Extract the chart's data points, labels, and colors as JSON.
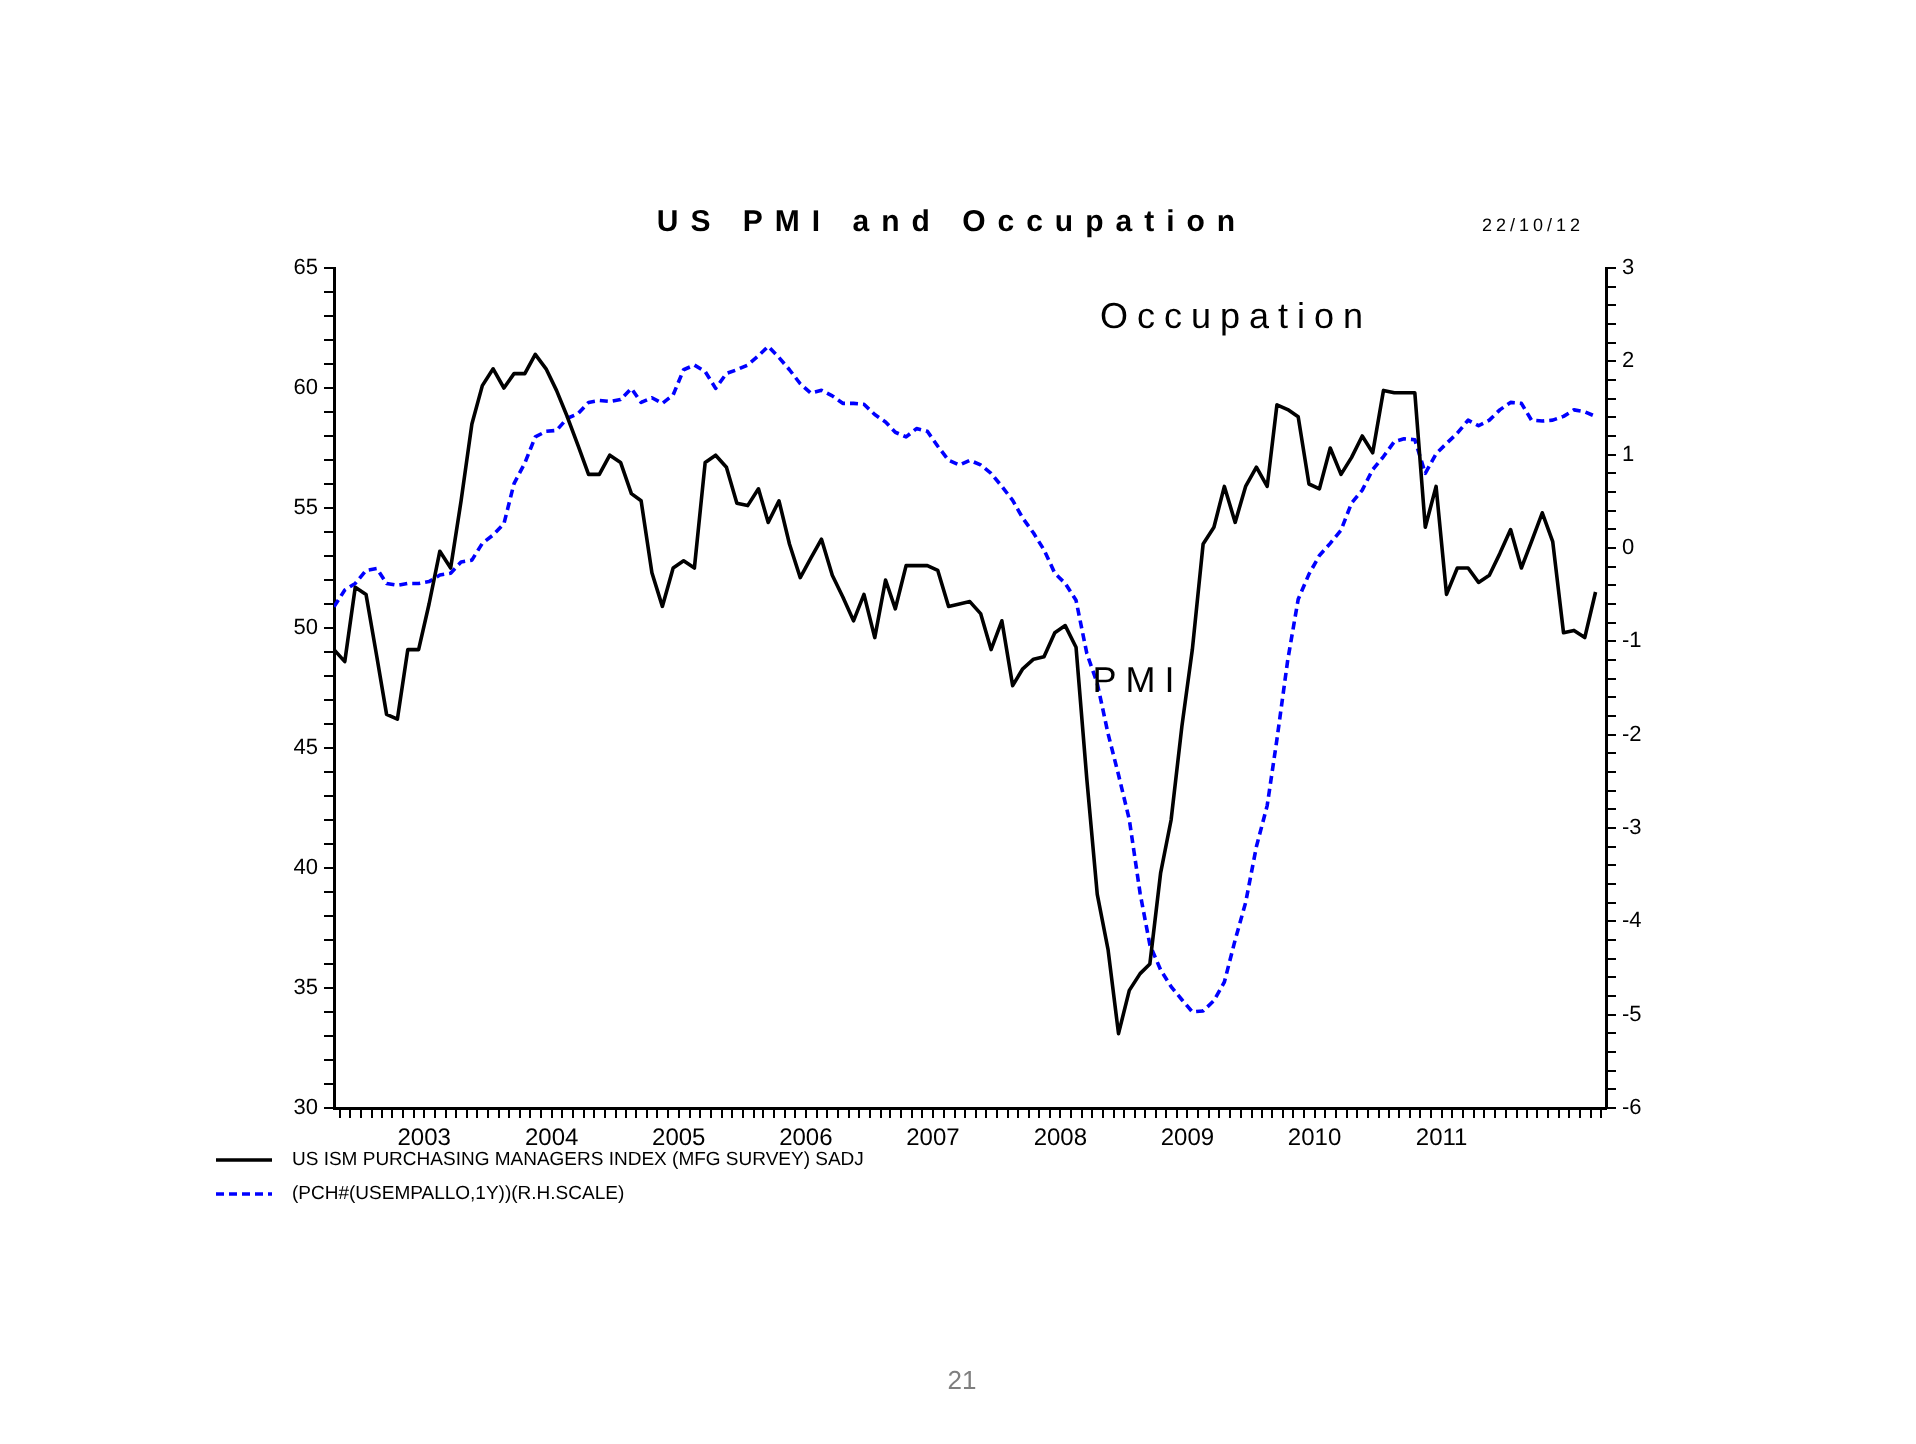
{
  "chart_data": {
    "type": "line",
    "title": "US PMI and Occupation",
    "annotations": [
      "Occupation",
      "PMI",
      "22/10/12",
      "21"
    ],
    "x": [
      "2002-10-15",
      "2002-11-15",
      "2002-12-15",
      "2003-01-15",
      "2003-02-15",
      "2003-03-15",
      "2003-04-15",
      "2003-05-15",
      "2003-06-15",
      "2003-07-15",
      "2003-08-15",
      "2003-09-15",
      "2003-10-15",
      "2003-11-15",
      "2003-12-15",
      "2004-01-15",
      "2004-02-15",
      "2004-03-15",
      "2004-04-15",
      "2004-05-15",
      "2004-06-15",
      "2004-07-15",
      "2004-08-15",
      "2004-09-15",
      "2004-10-15",
      "2004-11-15",
      "2004-12-15",
      "2005-01-15",
      "2005-02-15",
      "2005-03-15",
      "2005-04-15",
      "2005-05-15",
      "2005-06-15",
      "2005-07-15",
      "2005-08-15",
      "2005-09-15",
      "2005-10-15",
      "2005-11-15",
      "2005-12-15",
      "2006-01-15",
      "2006-02-15",
      "2006-03-15",
      "2006-04-15",
      "2006-05-15",
      "2006-06-15",
      "2006-07-15",
      "2006-08-15",
      "2006-09-15",
      "2006-10-15",
      "2006-11-15",
      "2006-12-15",
      "2007-01-15",
      "2007-02-15",
      "2007-03-15",
      "2007-04-15",
      "2007-05-15",
      "2007-06-15",
      "2007-07-15",
      "2007-08-15",
      "2007-09-15",
      "2007-10-15",
      "2007-11-15",
      "2007-12-15",
      "2008-01-15",
      "2008-02-15",
      "2008-03-15",
      "2008-04-15",
      "2008-05-15",
      "2008-06-15",
      "2008-07-15",
      "2008-08-15",
      "2008-09-15",
      "2008-10-15",
      "2008-11-15",
      "2008-12-15",
      "2009-01-15",
      "2009-02-15",
      "2009-03-15",
      "2009-04-15",
      "2009-05-15",
      "2009-06-15",
      "2009-07-15",
      "2009-08-15",
      "2009-09-15",
      "2009-10-15",
      "2009-11-15",
      "2009-12-15",
      "2010-01-15",
      "2010-02-15",
      "2010-03-15",
      "2010-04-15",
      "2010-05-15",
      "2010-06-15",
      "2010-07-15",
      "2010-08-15",
      "2010-09-15",
      "2010-10-15",
      "2010-11-15",
      "2010-12-15",
      "2011-01-15",
      "2011-02-15",
      "2011-03-15",
      "2011-04-15",
      "2011-05-15",
      "2011-06-15",
      "2011-07-15",
      "2011-08-15",
      "2011-09-15",
      "2011-10-15",
      "2011-11-15",
      "2011-12-15",
      "2012-01-15",
      "2012-02-15",
      "2012-03-15",
      "2012-04-15",
      "2012-05-15",
      "2012-06-15",
      "2012-07-15",
      "2012-08-15",
      "2012-09-15"
    ],
    "series": [
      {
        "name": "US ISM PURCHASING MANAGERS INDEX (MFG SURVEY) SADJ",
        "color": "#000000",
        "line_style": "solid",
        "values": [
          49.1,
          48.6,
          51.7,
          51.4,
          48.8,
          46.4,
          46.2,
          49.1,
          49.1,
          51.0,
          53.2,
          52.5,
          55.3,
          58.5,
          60.1,
          60.8,
          60.0,
          60.6,
          60.6,
          61.4,
          60.8,
          59.9,
          58.8,
          57.6,
          56.4,
          56.4,
          57.2,
          56.9,
          55.6,
          55.3,
          52.3,
          50.9,
          52.5,
          52.8,
          52.5,
          56.9,
          57.2,
          56.7,
          55.2,
          55.1,
          55.8,
          54.4,
          55.3,
          53.5,
          52.1,
          52.9,
          53.7,
          52.2,
          51.3,
          50.3,
          51.4,
          49.6,
          52.0,
          50.8,
          52.6,
          52.6,
          52.6,
          52.4,
          50.9,
          51.0,
          51.1,
          50.6,
          49.1,
          50.3,
          47.6,
          48.3,
          48.7,
          48.8,
          49.8,
          50.1,
          49.2,
          43.7,
          38.9,
          36.6,
          33.1,
          34.9,
          35.6,
          36.0,
          39.8,
          42.0,
          45.9,
          49.1,
          53.5,
          54.2,
          55.9,
          54.4,
          55.9,
          56.7,
          55.9,
          59.3,
          59.1,
          58.8,
          56.0,
          55.8,
          57.5,
          56.4,
          57.1,
          58.0,
          57.3,
          59.9,
          59.8,
          59.8,
          59.8,
          54.2,
          55.9,
          51.4,
          52.5,
          52.5,
          51.9,
          52.2,
          53.1,
          54.1,
          52.5,
          53.6,
          54.8,
          53.6,
          49.8,
          49.9,
          49.6,
          51.5
        ]
      },
      {
        "name": "(PCH#(USEMPALLO,1Y))(R.H.SCALE)",
        "color": "#0000ff",
        "line_style": "dashed",
        "axis": "y2",
        "values": [
          -0.63,
          -0.45,
          -0.38,
          -0.24,
          -0.22,
          -0.38,
          -0.4,
          -0.38,
          -0.38,
          -0.36,
          -0.29,
          -0.27,
          -0.15,
          -0.13,
          0.05,
          0.14,
          0.26,
          0.69,
          0.91,
          1.19,
          1.25,
          1.26,
          1.39,
          1.44,
          1.56,
          1.58,
          1.57,
          1.59,
          1.71,
          1.56,
          1.61,
          1.55,
          1.64,
          1.91,
          1.96,
          1.89,
          1.71,
          1.87,
          1.91,
          1.96,
          2.06,
          2.16,
          2.04,
          1.91,
          1.76,
          1.66,
          1.69,
          1.63,
          1.55,
          1.55,
          1.54,
          1.43,
          1.35,
          1.24,
          1.19,
          1.28,
          1.25,
          1.09,
          0.94,
          0.89,
          0.94,
          0.89,
          0.8,
          0.66,
          0.51,
          0.32,
          0.16,
          -0.02,
          -0.27,
          -0.38,
          -0.56,
          -1.13,
          -1.45,
          -1.99,
          -2.43,
          -2.91,
          -3.7,
          -4.25,
          -4.52,
          -4.7,
          -4.84,
          -4.97,
          -4.96,
          -4.85,
          -4.65,
          -4.2,
          -3.8,
          -3.2,
          -2.76,
          -2.05,
          -1.2,
          -0.55,
          -0.28,
          -0.08,
          0.05,
          0.19,
          0.48,
          0.62,
          0.84,
          0.98,
          1.14,
          1.17,
          1.16,
          0.8,
          1.01,
          1.12,
          1.23,
          1.37,
          1.31,
          1.37,
          1.48,
          1.56,
          1.55,
          1.37,
          1.36,
          1.37,
          1.41,
          1.48,
          1.46,
          1.41
        ]
      }
    ],
    "xlim": [
      "2002-10-15",
      "2012-10-15"
    ],
    "xticks": [
      {
        "value": "2002-11",
        "label": null
      },
      {
        "value": "2002-12",
        "label": null
      },
      {
        "value": "2003-01",
        "label": null
      },
      {
        "value": "2003-02",
        "label": null
      },
      {
        "value": "2003-03",
        "label": null
      },
      {
        "value": "2003-04",
        "label": null
      },
      {
        "value": "2003-05",
        "label": null
      },
      {
        "value": "2003-06",
        "label": null
      },
      {
        "value": "2003-07",
        "label": "2003"
      },
      {
        "value": "2003-08",
        "label": null
      },
      {
        "value": "2003-09",
        "label": null
      },
      {
        "value": "2003-10",
        "label": null
      },
      {
        "value": "2003-11",
        "label": null
      },
      {
        "value": "2003-12",
        "label": null
      },
      {
        "value": "2004-01",
        "label": null
      },
      {
        "value": "2004-02",
        "label": null
      },
      {
        "value": "2004-03",
        "label": null
      },
      {
        "value": "2004-04",
        "label": null
      },
      {
        "value": "2004-05",
        "label": null
      },
      {
        "value": "2004-06",
        "label": null
      },
      {
        "value": "2004-07",
        "label": "2004"
      },
      {
        "value": "2004-08",
        "label": null
      },
      {
        "value": "2004-09",
        "label": null
      },
      {
        "value": "2004-10",
        "label": null
      },
      {
        "value": "2004-11",
        "label": null
      },
      {
        "value": "2004-12",
        "label": null
      },
      {
        "value": "2005-01",
        "label": null
      },
      {
        "value": "2005-02",
        "label": null
      },
      {
        "value": "2005-03",
        "label": null
      },
      {
        "value": "2005-04",
        "label": null
      },
      {
        "value": "2005-05",
        "label": null
      },
      {
        "value": "2005-06",
        "label": null
      },
      {
        "value": "2005-07",
        "label": "2005"
      },
      {
        "value": "2005-08",
        "label": null
      },
      {
        "value": "2005-09",
        "label": null
      },
      {
        "value": "2005-10",
        "label": null
      },
      {
        "value": "2005-11",
        "label": null
      },
      {
        "value": "2005-12",
        "label": null
      },
      {
        "value": "2006-01",
        "label": null
      },
      {
        "value": "2006-02",
        "label": null
      },
      {
        "value": "2006-03",
        "label": null
      },
      {
        "value": "2006-04",
        "label": null
      },
      {
        "value": "2006-05",
        "label": null
      },
      {
        "value": "2006-06",
        "label": null
      },
      {
        "value": "2006-07",
        "label": "2006"
      },
      {
        "value": "2006-08",
        "label": null
      },
      {
        "value": "2006-09",
        "label": null
      },
      {
        "value": "2006-10",
        "label": null
      },
      {
        "value": "2006-11",
        "label": null
      },
      {
        "value": "2006-12",
        "label": null
      },
      {
        "value": "2007-01",
        "label": null
      },
      {
        "value": "2007-02",
        "label": null
      },
      {
        "value": "2007-03",
        "label": null
      },
      {
        "value": "2007-04",
        "label": null
      },
      {
        "value": "2007-05",
        "label": null
      },
      {
        "value": "2007-06",
        "label": null
      },
      {
        "value": "2007-07",
        "label": "2007"
      },
      {
        "value": "2007-08",
        "label": null
      },
      {
        "value": "2007-09",
        "label": null
      },
      {
        "value": "2007-10",
        "label": null
      },
      {
        "value": "2007-11",
        "label": null
      },
      {
        "value": "2007-12",
        "label": null
      },
      {
        "value": "2008-01",
        "label": null
      },
      {
        "value": "2008-02",
        "label": null
      },
      {
        "value": "2008-03",
        "label": null
      },
      {
        "value": "2008-04",
        "label": null
      },
      {
        "value": "2008-05",
        "label": null
      },
      {
        "value": "2008-06",
        "label": null
      },
      {
        "value": "2008-07",
        "label": "2008"
      },
      {
        "value": "2008-08",
        "label": null
      },
      {
        "value": "2008-09",
        "label": null
      },
      {
        "value": "2008-10",
        "label": null
      },
      {
        "value": "2008-11",
        "label": null
      },
      {
        "value": "2008-12",
        "label": null
      },
      {
        "value": "2009-01",
        "label": null
      },
      {
        "value": "2009-02",
        "label": null
      },
      {
        "value": "2009-03",
        "label": null
      },
      {
        "value": "2009-04",
        "label": null
      },
      {
        "value": "2009-05",
        "label": null
      },
      {
        "value": "2009-06",
        "label": null
      },
      {
        "value": "2009-07",
        "label": "2009"
      },
      {
        "value": "2009-08",
        "label": null
      },
      {
        "value": "2009-09",
        "label": null
      },
      {
        "value": "2009-10",
        "label": null
      },
      {
        "value": "2009-11",
        "label": null
      },
      {
        "value": "2009-12",
        "label": null
      },
      {
        "value": "2010-01",
        "label": null
      },
      {
        "value": "2010-02",
        "label": null
      },
      {
        "value": "2010-03",
        "label": null
      },
      {
        "value": "2010-04",
        "label": null
      },
      {
        "value": "2010-05",
        "label": null
      },
      {
        "value": "2010-06",
        "label": null
      },
      {
        "value": "2010-07",
        "label": "2010"
      },
      {
        "value": "2010-08",
        "label": null
      },
      {
        "value": "2010-09",
        "label": null
      },
      {
        "value": "2010-10",
        "label": null
      },
      {
        "value": "2010-11",
        "label": null
      },
      {
        "value": "2010-12",
        "label": null
      },
      {
        "value": "2011-01",
        "label": null
      },
      {
        "value": "2011-02",
        "label": null
      },
      {
        "value": "2011-03",
        "label": null
      },
      {
        "value": "2011-04",
        "label": null
      },
      {
        "value": "2011-05",
        "label": null
      },
      {
        "value": "2011-06",
        "label": null
      },
      {
        "value": "2011-07",
        "label": "2011"
      },
      {
        "value": "2011-08",
        "label": null
      },
      {
        "value": "2011-09",
        "label": null
      },
      {
        "value": "2011-10",
        "label": null
      },
      {
        "value": "2011-11",
        "label": null
      },
      {
        "value": "2011-12",
        "label": null
      },
      {
        "value": "2012-01",
        "label": null
      },
      {
        "value": "2012-02",
        "label": null
      },
      {
        "value": "2012-03",
        "label": null
      },
      {
        "value": "2012-04",
        "label": null
      },
      {
        "value": "2012-05",
        "label": null
      },
      {
        "value": "2012-06",
        "label": null
      },
      {
        "value": "2012-07",
        "label": null
      },
      {
        "value": "2012-08",
        "label": null
      },
      {
        "value": "2012-09",
        "label": null
      },
      {
        "value": "2012-10",
        "label": null
      }
    ],
    "ylim": [
      30,
      65
    ],
    "yticks": [
      30,
      {
        "value": 31,
        "label": null
      },
      {
        "value": 32,
        "label": null
      },
      {
        "value": 33,
        "label": null
      },
      {
        "value": 34,
        "label": null
      },
      35,
      {
        "value": 36,
        "label": null
      },
      {
        "value": 37,
        "label": null
      },
      {
        "value": 38,
        "label": null
      },
      {
        "value": 39,
        "label": null
      },
      40,
      {
        "value": 41,
        "label": null
      },
      {
        "value": 42,
        "label": null
      },
      {
        "value": 43,
        "label": null
      },
      {
        "value": 44,
        "label": null
      },
      45,
      {
        "value": 46,
        "label": null
      },
      {
        "value": 47,
        "label": null
      },
      {
        "value": 48,
        "label": null
      },
      {
        "value": 49,
        "label": null
      },
      50,
      {
        "value": 51,
        "label": null
      },
      {
        "value": 52,
        "label": null
      },
      {
        "value": 53,
        "label": null
      },
      {
        "value": 54,
        "label": null
      },
      55,
      {
        "value": 56,
        "label": null
      },
      {
        "value": 57,
        "label": null
      },
      {
        "value": 58,
        "label": null
      },
      {
        "value": 59,
        "label": null
      },
      60,
      {
        "value": 61,
        "label": null
      },
      {
        "value": 62,
        "label": null
      },
      {
        "value": 63,
        "label": null
      },
      {
        "value": 64,
        "label": null
      },
      65
    ],
    "y2lim": [
      -6,
      3
    ],
    "y2ticks": [
      -6,
      {
        "value": -5.8,
        "label": null
      },
      {
        "value": -5.6,
        "label": null
      },
      {
        "value": -5.4,
        "label": null
      },
      {
        "value": -5.2,
        "label": null
      },
      -5,
      {
        "value": -4.8,
        "label": null
      },
      {
        "value": -4.6,
        "label": null
      },
      {
        "value": -4.4,
        "label": null
      },
      {
        "value": -4.2,
        "label": null
      },
      -4,
      {
        "value": -3.8,
        "label": null
      },
      {
        "value": -3.6,
        "label": null
      },
      {
        "value": -3.4,
        "label": null
      },
      {
        "value": -3.2,
        "label": null
      },
      -3,
      {
        "value": -2.8,
        "label": null
      },
      {
        "value": -2.6,
        "label": null
      },
      {
        "value": -2.4,
        "label": null
      },
      {
        "value": -2.2,
        "label": null
      },
      -2,
      {
        "value": -1.8,
        "label": null
      },
      {
        "value": -1.6,
        "label": null
      },
      {
        "value": -1.4,
        "label": null
      },
      {
        "value": -1.2,
        "label": null
      },
      -1,
      {
        "value": -0.8,
        "label": null
      },
      {
        "value": -0.6,
        "label": null
      },
      {
        "value": -0.4,
        "label": null
      },
      {
        "value": -0.2,
        "label": null
      },
      0,
      {
        "value": 0.2,
        "label": null
      },
      {
        "value": 0.4,
        "label": null
      },
      {
        "value": 0.6,
        "label": null
      },
      {
        "value": 0.8,
        "label": null
      },
      1,
      {
        "value": 1.2,
        "label": null
      },
      {
        "value": 1.4,
        "label": null
      },
      {
        "value": 1.6,
        "label": null
      },
      {
        "value": 1.8,
        "label": null
      },
      2,
      {
        "value": 2.2,
        "label": null
      },
      {
        "value": 2.4,
        "label": null
      },
      {
        "value": 2.6,
        "label": null
      },
      {
        "value": 2.8,
        "label": null
      },
      3
    ],
    "legend": "bottom left",
    "marker": "none"
  }
}
